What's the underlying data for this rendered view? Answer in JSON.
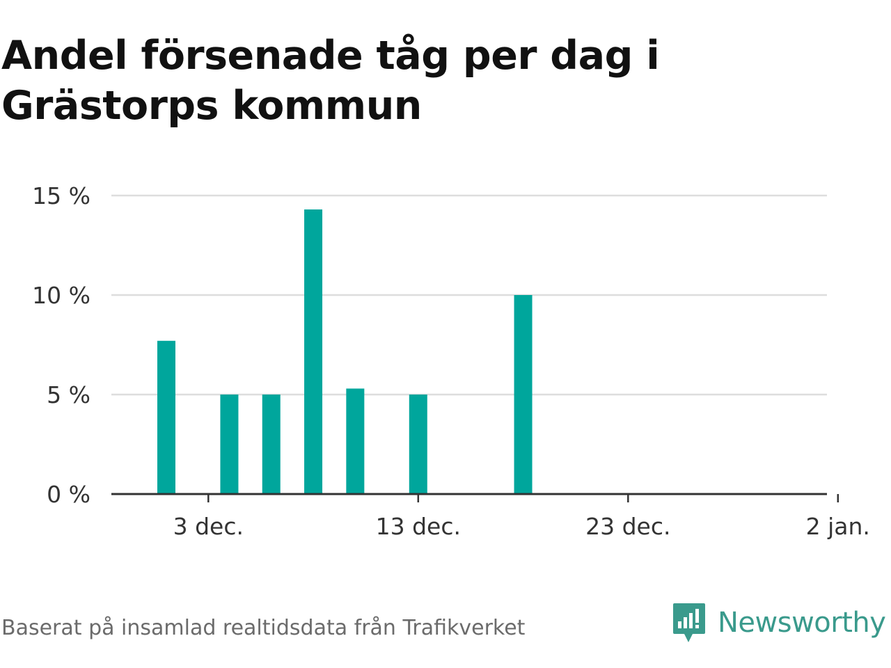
{
  "title": "Andel försenade tåg per dag i Grästorps kommun",
  "footer": {
    "source": "Baserat på insamlad realtidsdata från Trafikverket",
    "brand": "Newsworthy"
  },
  "colors": {
    "bar": "#00a69c",
    "grid": "#dddddd",
    "axis": "#333333",
    "brand": "#3a9a8c"
  },
  "chart_data": {
    "type": "bar",
    "title": "Andel försenade tåg per dag i Grästorps kommun",
    "xlabel": "",
    "ylabel": "",
    "ylim": [
      0,
      15
    ],
    "xlim": [
      "2022-11-29",
      "2023-01-02"
    ],
    "y_ticks": [
      {
        "value": 0,
        "label": "0 %"
      },
      {
        "value": 5,
        "label": "5 %"
      },
      {
        "value": 10,
        "label": "10 %"
      },
      {
        "value": 15,
        "label": "15 %"
      }
    ],
    "x_ticks": [
      {
        "date": "2022-12-03",
        "label": "3 dec."
      },
      {
        "date": "2022-12-13",
        "label": "13 dec."
      },
      {
        "date": "2022-12-23",
        "label": "23 dec."
      },
      {
        "date": "2023-01-02",
        "label": "2 jan."
      }
    ],
    "grid": true,
    "legend": "none",
    "x": [
      "2022-12-01",
      "2022-12-04",
      "2022-12-06",
      "2022-12-08",
      "2022-12-10",
      "2022-12-13",
      "2022-12-18"
    ],
    "values": [
      7.7,
      5.0,
      5.0,
      14.3,
      5.3,
      5.0,
      10.0
    ],
    "unit": "%"
  }
}
